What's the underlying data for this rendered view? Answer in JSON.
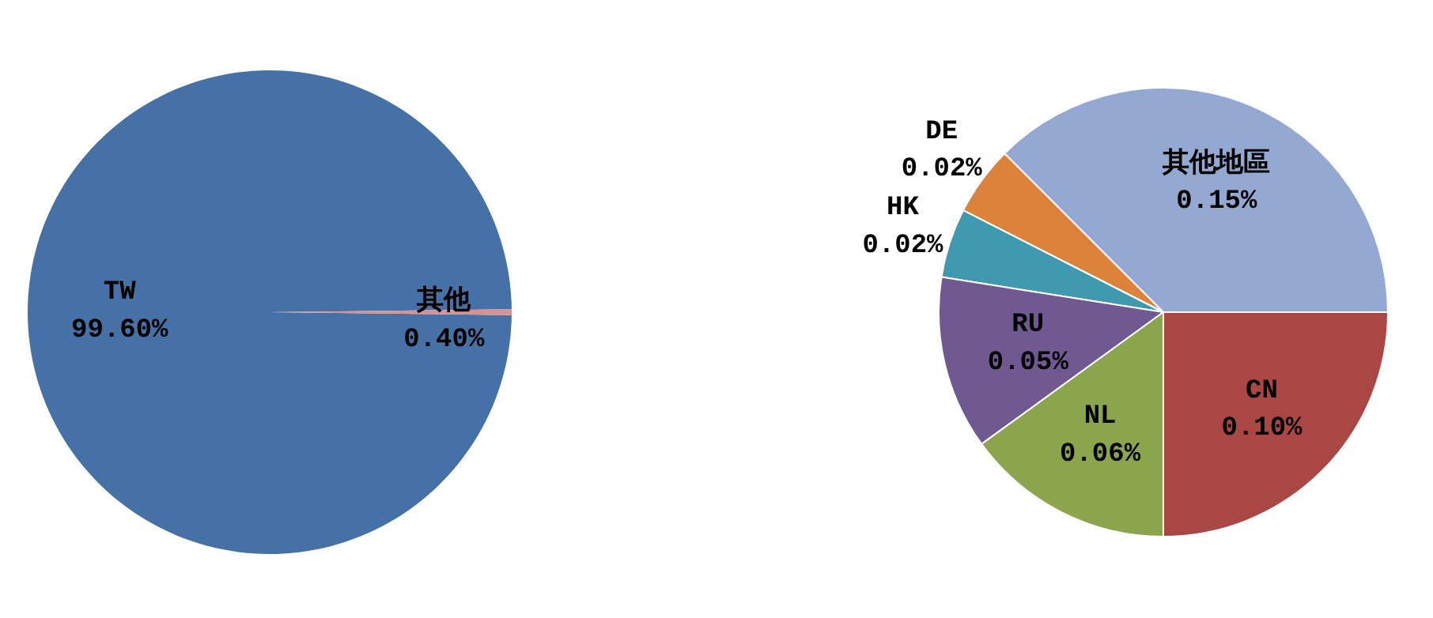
{
  "chart_data": [
    {
      "type": "pie",
      "categories": [
        "TW",
        "其他"
      ],
      "values": [
        99.6,
        0.4
      ],
      "value_labels": [
        "99.60%",
        "0.40%"
      ],
      "colors": [
        "#4571a6",
        "#d9928f"
      ]
    },
    {
      "type": "pie",
      "categories": [
        "其他地區",
        "DE",
        "HK",
        "RU",
        "NL",
        "CN"
      ],
      "values": [
        0.15,
        0.02,
        0.02,
        0.05,
        0.06,
        0.1
      ],
      "value_labels": [
        "0.15%",
        "0.02%",
        "0.02%",
        "0.05%",
        "0.06%",
        "0.10%"
      ],
      "colors": [
        "#94a9d2",
        "#dc823b",
        "#409aaf",
        "#705891",
        "#8ba54d",
        "#a94744"
      ]
    }
  ]
}
